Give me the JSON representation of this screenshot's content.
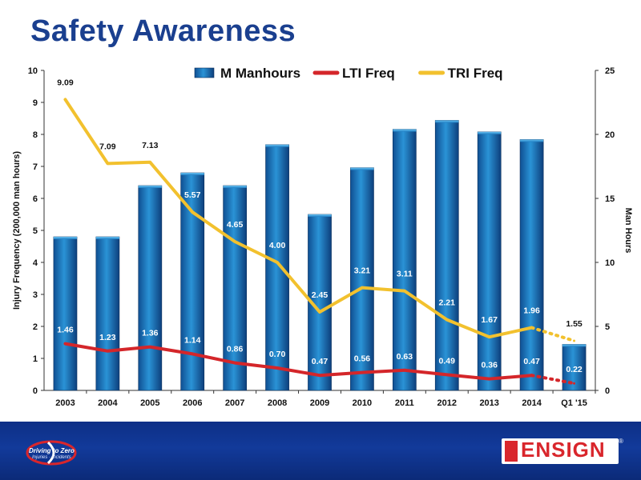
{
  "page": {
    "title": "Safety Awareness"
  },
  "footer": {
    "left_logo_text": "Driving to Zero",
    "left_logo_sub": "Injuries · Incidents",
    "right_logo_text": "ENSIGN",
    "registered": "®"
  },
  "chart_data": {
    "type": "bar",
    "categories": [
      "2003",
      "2004",
      "2005",
      "2006",
      "2007",
      "2008",
      "2009",
      "2010",
      "2011",
      "2012",
      "2013",
      "2014",
      "Q1 '15"
    ],
    "series": [
      {
        "name": "M Manhours",
        "type": "bar",
        "axis": "right",
        "color": "#1f7fc4",
        "values": [
          12.0,
          12.0,
          16.0,
          17.0,
          16.0,
          19.2,
          13.75,
          17.4,
          20.4,
          21.1,
          20.2,
          19.6,
          3.6
        ]
      },
      {
        "name": "LTI Freq",
        "type": "line",
        "axis": "left",
        "color": "#d4262a",
        "values": [
          1.46,
          1.23,
          1.36,
          1.14,
          0.86,
          0.7,
          0.47,
          0.56,
          0.63,
          0.49,
          0.36,
          0.47,
          0.22
        ],
        "labels": [
          "1.46",
          "1.23",
          "1.36",
          "1.14",
          "0.86",
          "0.70",
          "0.47",
          "0.56",
          "0.63",
          "0.49",
          "0.36",
          "0.47",
          "0.22"
        ]
      },
      {
        "name": "TRI Freq",
        "type": "line",
        "axis": "left",
        "color": "#f2c12e",
        "values": [
          9.09,
          7.09,
          7.13,
          5.57,
          4.65,
          4.0,
          2.45,
          3.21,
          3.11,
          2.21,
          1.67,
          1.96,
          1.55
        ],
        "labels": [
          "9.09",
          "7.09",
          "7.13",
          "5.57",
          "4.65",
          "4.00",
          "2.45",
          "3.21",
          "3.11",
          "2.21",
          "1.67",
          "1.96",
          "1.55"
        ]
      }
    ],
    "ylabel": "Injury Frequency (200,000 man hours)",
    "y2label": "Man Hours",
    "ylim": [
      0,
      10
    ],
    "y2lim": [
      0,
      25
    ],
    "yticks": [
      "0",
      "1",
      "2",
      "3",
      "4",
      "5",
      "6",
      "7",
      "8",
      "9",
      "10"
    ],
    "y2ticks": [
      "0",
      "5",
      "10",
      "15",
      "20",
      "25"
    ],
    "legend_position": "top-center",
    "grid": false,
    "last_point_dotted": true
  }
}
